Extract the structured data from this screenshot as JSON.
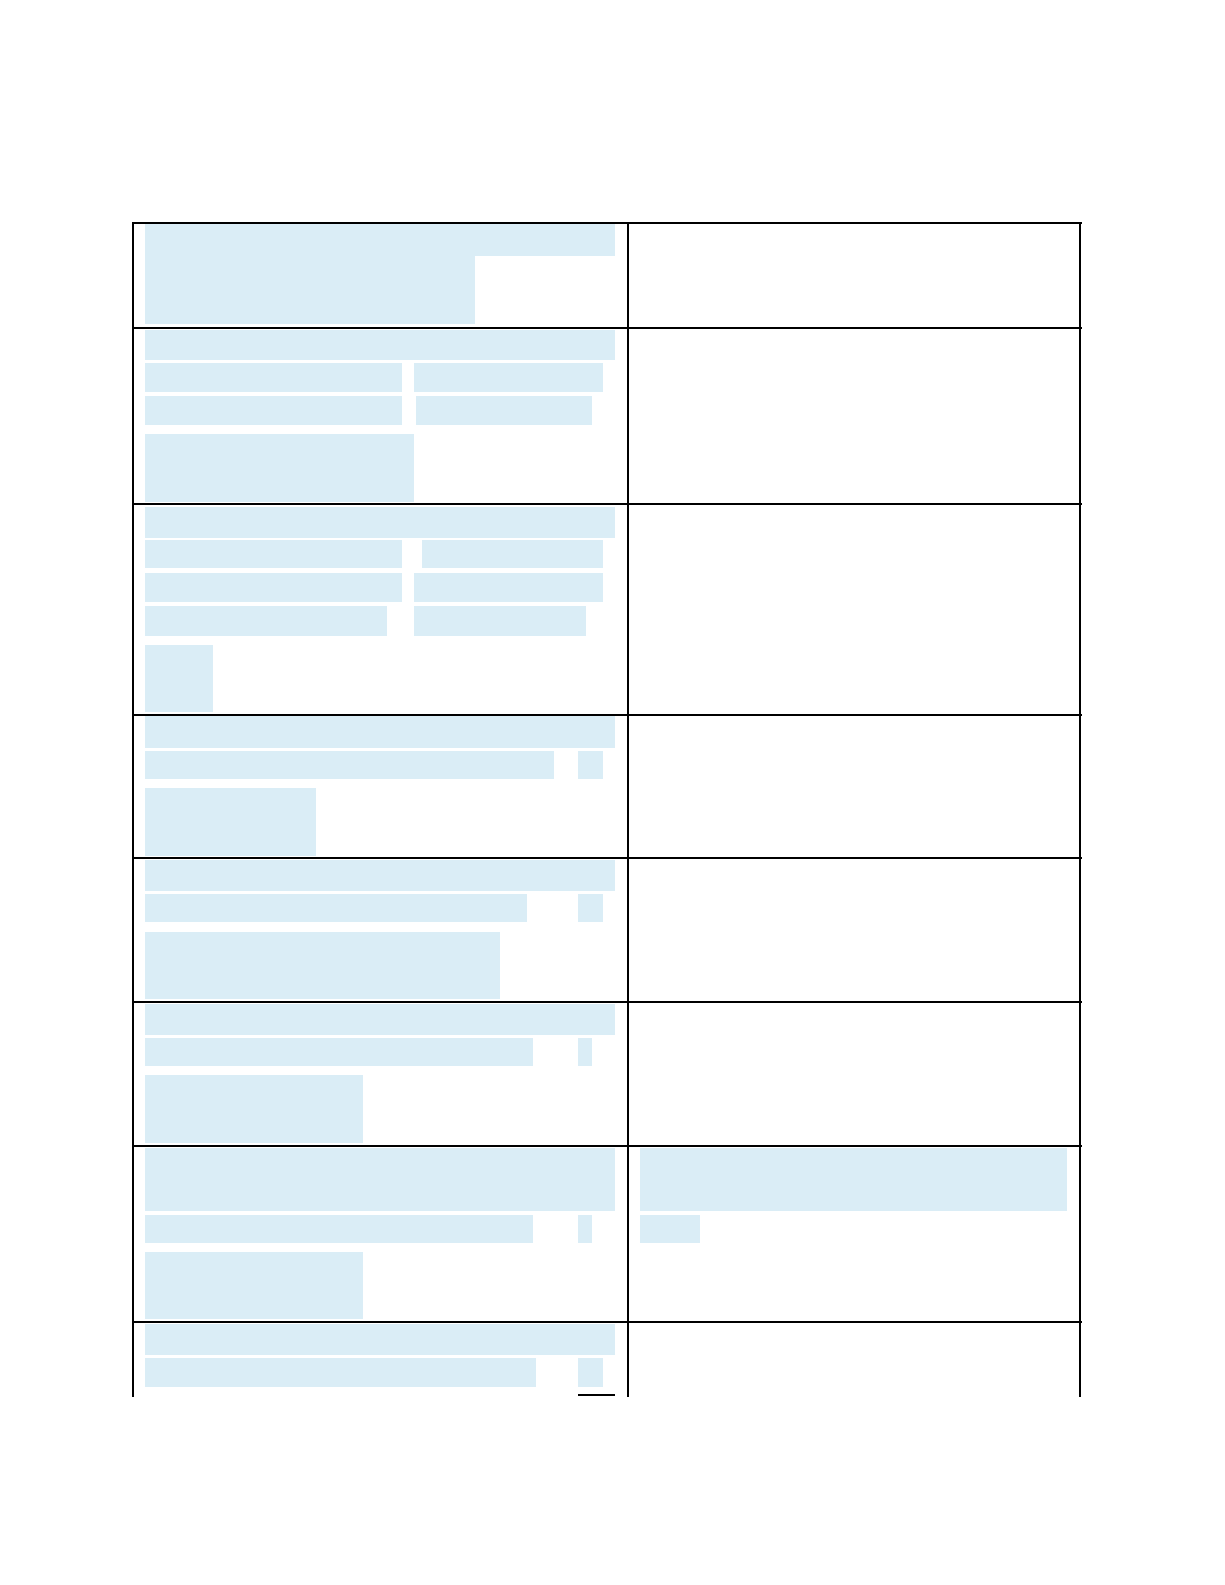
{
  "form": {
    "field_fill_color": "#daedf6",
    "border_color": "#000000",
    "rows": [
      {
        "left_fields": 2,
        "right_fields": 0
      },
      {
        "left_fields": 6,
        "right_fields": 0
      },
      {
        "left_fields": 8,
        "right_fields": 0
      },
      {
        "left_fields": 4,
        "right_fields": 0
      },
      {
        "left_fields": 4,
        "right_fields": 0
      },
      {
        "left_fields": 4,
        "right_fields": 0
      },
      {
        "left_fields": 4,
        "right_fields": 2
      },
      {
        "left_fields": 3,
        "right_fields": 0
      }
    ]
  }
}
